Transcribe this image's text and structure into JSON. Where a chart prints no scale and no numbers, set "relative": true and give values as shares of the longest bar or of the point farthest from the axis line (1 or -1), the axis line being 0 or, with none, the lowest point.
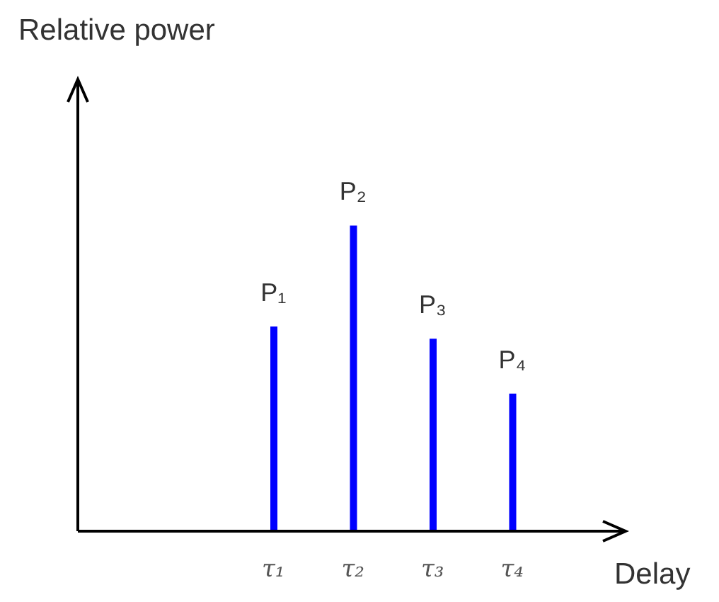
{
  "chart_data": {
    "type": "bar",
    "relative": true,
    "xlabel": "Delay",
    "categories": [
      "τ₁",
      "τ₂",
      "τ₃",
      "τ₄"
    ],
    "values": [
      0.67,
      1,
      0.63,
      0.45
    ],
    "color": "#0000ff",
    "annotations": [
      "Relative power",
      {
        "text": "P₁",
        "x": "τ₁",
        "y": 0.67
      },
      {
        "text": "P₂",
        "x": "τ₂",
        "y": 1
      },
      {
        "text": "P₃",
        "x": "τ₃",
        "y": 0.63
      },
      {
        "text": "P₄",
        "x": "τ₄",
        "y": 0.45
      }
    ]
  }
}
